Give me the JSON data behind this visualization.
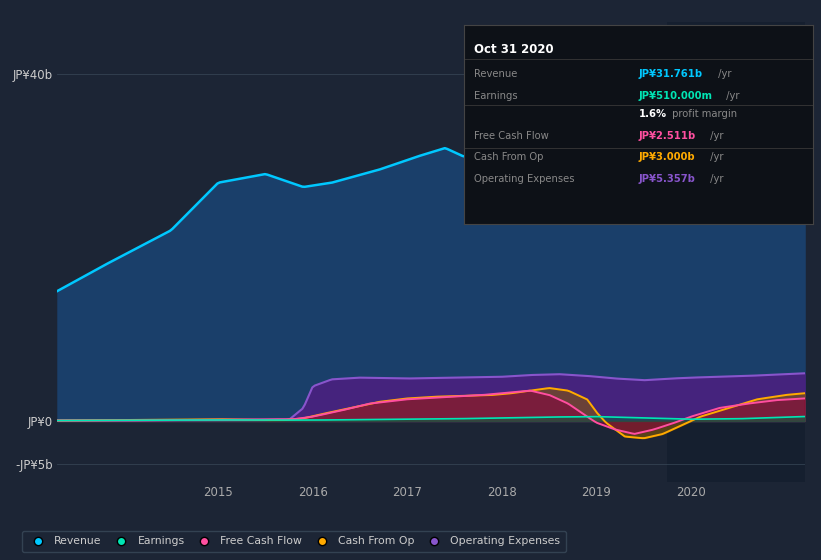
{
  "background_color": "#1c2535",
  "plot_bg_color": "#1c2535",
  "revenue_color": "#00c8ff",
  "earnings_color": "#00e5b4",
  "fcf_color": "#ff4fa0",
  "cashop_color": "#ffaa00",
  "opex_color": "#8855cc",
  "revenue_fill": "#1a3f6a",
  "opex_fill": "#4a2080",
  "shade_color": "#141e2e",
  "y_ticks": [
    "JP¥40b",
    "JP¥0",
    "-JP¥5b"
  ],
  "y_tick_vals": [
    40,
    0,
    -5
  ],
  "x_tick_vals": [
    2015,
    2016,
    2017,
    2018,
    2019,
    2020
  ],
  "ylim": [
    -7,
    46
  ],
  "xlim": [
    2013.3,
    2021.2
  ],
  "shade_start": 2019.75,
  "legend": [
    {
      "label": "Revenue",
      "color": "#00c8ff"
    },
    {
      "label": "Earnings",
      "color": "#00e5b4"
    },
    {
      "label": "Free Cash Flow",
      "color": "#ff4fa0"
    },
    {
      "label": "Cash From Op",
      "color": "#ffaa00"
    },
    {
      "label": "Operating Expenses",
      "color": "#8855cc"
    }
  ],
  "tooltip_title": "Oct 31 2020",
  "tooltip_rows": [
    {
      "label": "Revenue",
      "value": "JP¥31.761b",
      "suffix": " /yr",
      "color": "#00c8ff"
    },
    {
      "label": "Earnings",
      "value": "JP¥510.000m",
      "suffix": " /yr",
      "color": "#00e5b4"
    },
    {
      "label": "",
      "value": "1.6%",
      "suffix": " profit margin",
      "color": "#ffffff"
    },
    {
      "label": "Free Cash Flow",
      "value": "JP¥2.511b",
      "suffix": " /yr",
      "color": "#ff4fa0"
    },
    {
      "label": "Cash From Op",
      "value": "JP¥3.000b",
      "suffix": " /yr",
      "color": "#ffaa00"
    },
    {
      "label": "Operating Expenses",
      "value": "JP¥5.357b",
      "suffix": " /yr",
      "color": "#8855cc"
    }
  ]
}
